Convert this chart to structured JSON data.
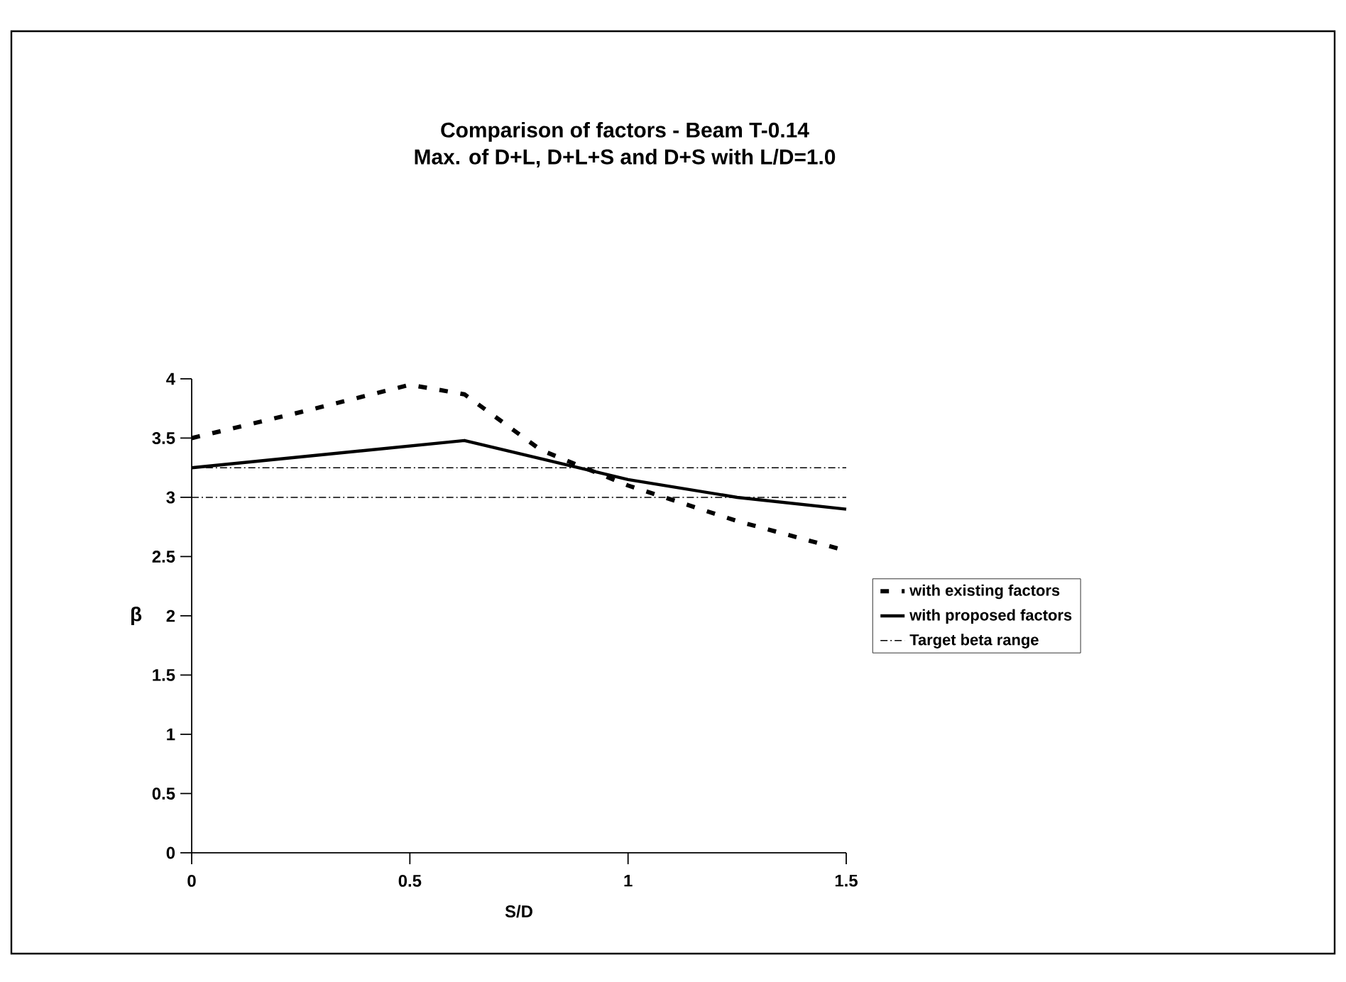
{
  "chart_data": {
    "type": "line",
    "title": "Comparison of factors - Beam T-0.14",
    "subtitle": "Max. of D+L, D+L+S and D+S with L/D=1.0",
    "xlabel": "S/D",
    "ylabel": "β",
    "xlim": [
      0,
      1.5
    ],
    "xticks": [
      0,
      0.5,
      1,
      1.5
    ],
    "ylim": [
      0,
      4
    ],
    "yticks": [
      0,
      0.5,
      1,
      1.5,
      2,
      2.5,
      3,
      3.5,
      4
    ],
    "legend": "right",
    "series": [
      {
        "name": "with existing factors",
        "color": "#000000",
        "line_style": "dashed",
        "x": [
          0,
          0.25,
          0.5,
          0.625,
          0.8,
          1.0,
          1.25,
          1.5
        ],
        "values": [
          3.5,
          3.72,
          3.95,
          3.87,
          3.4,
          3.1,
          2.8,
          2.55
        ]
      },
      {
        "name": "with proposed factors",
        "color": "#000000",
        "line_style": "solid",
        "x": [
          0,
          0.625,
          1.0,
          1.25,
          1.5
        ],
        "values": [
          3.25,
          3.48,
          3.15,
          3.0,
          2.9
        ]
      },
      {
        "name": "Target beta range",
        "color": "#000000",
        "line_style": "dashdotted",
        "x": [
          0,
          1.5
        ],
        "values": [
          3.25,
          3.25
        ]
      },
      {
        "color": "#000000",
        "line_style": "dashdotted",
        "x": [
          0,
          1.5
        ],
        "values": [
          3.0,
          3.0
        ]
      }
    ]
  }
}
